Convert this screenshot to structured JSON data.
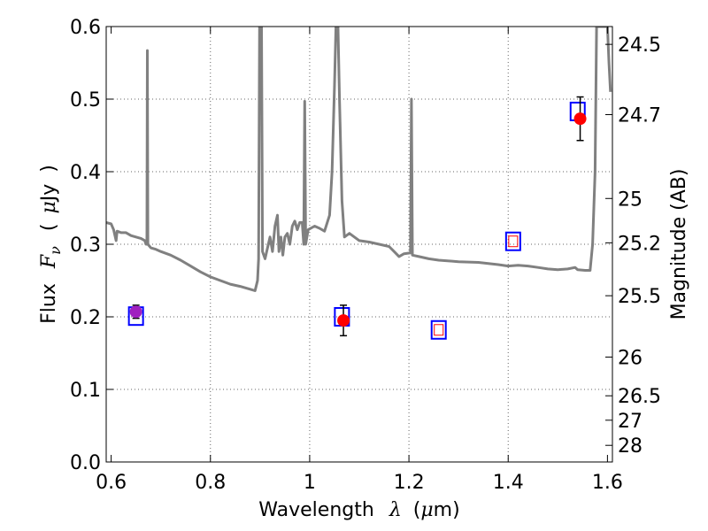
{
  "chart_data": {
    "type": "scatter",
    "xlabel": {
      "prefix": "Wavelength",
      "symbol": "λ",
      "paren_open": "(",
      "mu": "μ",
      "unit": "m",
      "paren_close": ")"
    },
    "ylabel": {
      "prefix": "Flux",
      "symbol": "F",
      "subscript": "ν",
      "paren_open": "(",
      "mu": "μ",
      "unit": "Jy",
      "paren_close": ")"
    },
    "y2label": "Magnitude (AB)",
    "xlim": [
      0.59,
      1.61
    ],
    "ylim": [
      0.0,
      0.6
    ],
    "xticks": [
      0.6,
      0.8,
      1.0,
      1.2,
      1.4,
      1.6
    ],
    "xtick_labels": [
      "0.6",
      "0.8",
      "1",
      "1.2",
      "1.4",
      "1.6"
    ],
    "yticks": [
      0.0,
      0.1,
      0.2,
      0.3,
      0.4,
      0.5,
      0.6
    ],
    "ytick_labels": [
      "0.0",
      "0.1",
      "0.2",
      "0.3",
      "0.4",
      "0.5",
      "0.6"
    ],
    "mag_ticks": [
      24.5,
      24.7,
      25,
      25.2,
      25.5,
      26,
      26.5,
      27,
      28
    ],
    "mag_tick_labels": [
      "24.5",
      "24.7",
      "25",
      "25.2",
      "25.5",
      "26",
      "26.5",
      "27",
      "28"
    ],
    "grid": true,
    "colors": {
      "model": "#808080",
      "observed": "#ff0000",
      "model_box": "#0000ff",
      "error": "#000000",
      "purple": "#a020c0"
    },
    "observed": [
      {
        "x": 0.65,
        "y": 0.207,
        "yerr": 0.009,
        "color": "#a020c0"
      },
      {
        "x": 1.068,
        "y": 0.195,
        "yerr": 0.021,
        "color": "#ff0000"
      },
      {
        "x": 1.545,
        "y": 0.473,
        "yerr": 0.03,
        "color": "#ff0000"
      }
    ],
    "model_photometry": [
      {
        "x": 0.65,
        "y": 0.201
      },
      {
        "x": 1.065,
        "y": 0.2
      },
      {
        "x": 1.26,
        "y": 0.182
      },
      {
        "x": 1.41,
        "y": 0.304
      },
      {
        "x": 1.54,
        "y": 0.483
      }
    ],
    "upper_limits": [
      {
        "x": 1.26,
        "y": 0.182
      },
      {
        "x": 1.41,
        "y": 0.304
      }
    ],
    "model_spectrum": [
      [
        0.59,
        0.33
      ],
      [
        0.6,
        0.328
      ],
      [
        0.605,
        0.32
      ],
      [
        0.61,
        0.305
      ],
      [
        0.612,
        0.318
      ],
      [
        0.62,
        0.316
      ],
      [
        0.63,
        0.316
      ],
      [
        0.64,
        0.312
      ],
      [
        0.65,
        0.31
      ],
      [
        0.66,
        0.308
      ],
      [
        0.668,
        0.305
      ],
      [
        0.67,
        0.3
      ],
      [
        0.672,
        0.3
      ],
      [
        0.673,
        0.567
      ],
      [
        0.674,
        0.3
      ],
      [
        0.68,
        0.295
      ],
      [
        0.69,
        0.293
      ],
      [
        0.7,
        0.29
      ],
      [
        0.72,
        0.285
      ],
      [
        0.74,
        0.278
      ],
      [
        0.76,
        0.27
      ],
      [
        0.78,
        0.262
      ],
      [
        0.8,
        0.255
      ],
      [
        0.82,
        0.25
      ],
      [
        0.84,
        0.245
      ],
      [
        0.86,
        0.242
      ],
      [
        0.88,
        0.238
      ],
      [
        0.89,
        0.236
      ],
      [
        0.895,
        0.25
      ],
      [
        0.897,
        0.28
      ],
      [
        0.899,
        0.6
      ],
      [
        0.903,
        0.6
      ],
      [
        0.905,
        0.29
      ],
      [
        0.91,
        0.28
      ],
      [
        0.915,
        0.295
      ],
      [
        0.92,
        0.31
      ],
      [
        0.925,
        0.29
      ],
      [
        0.93,
        0.325
      ],
      [
        0.935,
        0.34
      ],
      [
        0.938,
        0.29
      ],
      [
        0.942,
        0.31
      ],
      [
        0.946,
        0.285
      ],
      [
        0.95,
        0.31
      ],
      [
        0.955,
        0.315
      ],
      [
        0.96,
        0.3
      ],
      [
        0.965,
        0.325
      ],
      [
        0.97,
        0.332
      ],
      [
        0.975,
        0.32
      ],
      [
        0.98,
        0.33
      ],
      [
        0.985,
        0.33
      ],
      [
        0.988,
        0.3
      ],
      [
        0.99,
        0.497
      ],
      [
        0.992,
        0.3
      ],
      [
        0.997,
        0.32
      ],
      [
        1.01,
        0.325
      ],
      [
        1.02,
        0.322
      ],
      [
        1.03,
        0.318
      ],
      [
        1.04,
        0.34
      ],
      [
        1.045,
        0.4
      ],
      [
        1.05,
        0.52
      ],
      [
        1.053,
        0.6
      ],
      [
        1.057,
        0.6
      ],
      [
        1.06,
        0.5
      ],
      [
        1.065,
        0.36
      ],
      [
        1.07,
        0.31
      ],
      [
        1.08,
        0.315
      ],
      [
        1.09,
        0.31
      ],
      [
        1.1,
        0.305
      ],
      [
        1.12,
        0.303
      ],
      [
        1.14,
        0.3
      ],
      [
        1.16,
        0.297
      ],
      [
        1.17,
        0.29
      ],
      [
        1.18,
        0.283
      ],
      [
        1.19,
        0.287
      ],
      [
        1.203,
        0.288
      ],
      [
        1.205,
        0.5
      ],
      [
        1.207,
        0.285
      ],
      [
        1.22,
        0.283
      ],
      [
        1.24,
        0.28
      ],
      [
        1.26,
        0.278
      ],
      [
        1.3,
        0.276
      ],
      [
        1.34,
        0.275
      ],
      [
        1.38,
        0.272
      ],
      [
        1.4,
        0.27
      ],
      [
        1.42,
        0.271
      ],
      [
        1.44,
        0.27
      ],
      [
        1.46,
        0.268
      ],
      [
        1.48,
        0.266
      ],
      [
        1.5,
        0.265
      ],
      [
        1.52,
        0.266
      ],
      [
        1.535,
        0.268
      ],
      [
        1.54,
        0.265
      ],
      [
        1.555,
        0.264
      ],
      [
        1.565,
        0.264
      ],
      [
        1.57,
        0.3
      ],
      [
        1.575,
        0.4
      ],
      [
        1.578,
        0.6
      ],
      [
        1.6,
        0.6
      ],
      [
        1.603,
        0.55
      ],
      [
        1.606,
        0.51
      ]
    ]
  }
}
